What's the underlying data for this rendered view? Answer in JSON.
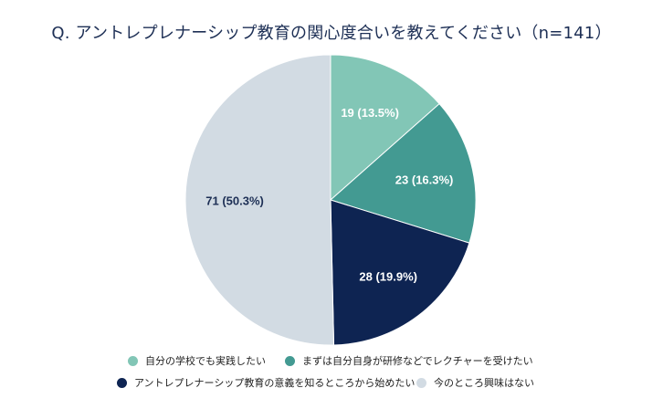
{
  "title": "Q. アントレプレナーシップ教育の関心度合いを教えてください（n=141）",
  "chart_data": {
    "type": "pie",
    "title": "Q. アントレプレナーシップ教育の関心度合いを教えてください（n=141）",
    "slices": [
      {
        "name": "自分の学校でも実践したい",
        "value": 19,
        "label": "19 (13.5%)",
        "color": "#82c6b6",
        "label_color": "#ffffff"
      },
      {
        "name": "まずは自分自身が研修などでレクチャーを受けたい",
        "value": 23,
        "label": "23 (16.3%)",
        "color": "#439a92",
        "label_color": "#ffffff"
      },
      {
        "name": "アントレプレナーシップ教育の意義を知るところから始めたい",
        "value": 28,
        "label": "28 (19.9%)",
        "color": "#0e2452",
        "label_color": "#ffffff"
      },
      {
        "name": "今のところ興味はない",
        "value": 71,
        "label": "71 (50.3%)",
        "color": "#d2dbe3",
        "label_color": "#1d2f55"
      }
    ],
    "start": "12 o'clock",
    "direction": "clockwise",
    "legend_position": "bottom"
  },
  "legend": {
    "items": [
      {
        "label": "自分の学校でも実践したい",
        "color": "#82c6b6"
      },
      {
        "label": "まずは自分自身が研修などでレクチャーを受けたい",
        "color": "#439a92"
      },
      {
        "label": "アントレプレナーシップ教育の意義を知るところから始めたい",
        "color": "#0e2452"
      },
      {
        "label": "今のところ興味はない",
        "color": "#d2dbe3"
      }
    ]
  }
}
